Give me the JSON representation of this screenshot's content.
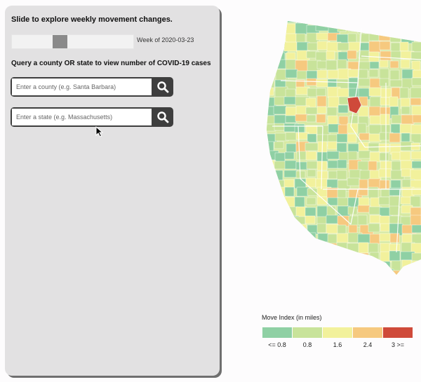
{
  "panel": {
    "title": "Slide to explore weekly movement changes.",
    "week_label": "Week of 2020-03-23",
    "slider_value_fraction": 0.38,
    "query_title": "Query a county OR state to view number of COVID-19 cases",
    "county_search": {
      "placeholder": "Enter a county (e.g. Santa Barbara)",
      "value": "",
      "icon": "search-icon"
    },
    "state_search": {
      "placeholder": "Enter a state (e.g. Massachusetts)",
      "value": "",
      "icon": "search-icon"
    }
  },
  "legend": {
    "title": "Move Index (in miles)",
    "bins": [
      {
        "label": "<= 0.8",
        "color": "#8fd0a4"
      },
      {
        "label": "0.8",
        "color": "#c8e39a"
      },
      {
        "label": "1.6",
        "color": "#f2f19c"
      },
      {
        "label": "2.4",
        "color": "#f6c97f"
      },
      {
        "label": "3 >=",
        "color": "#cf4a3a"
      }
    ]
  },
  "map": {
    "region": "Western United States",
    "highlight_color": "#cf4a3a"
  }
}
